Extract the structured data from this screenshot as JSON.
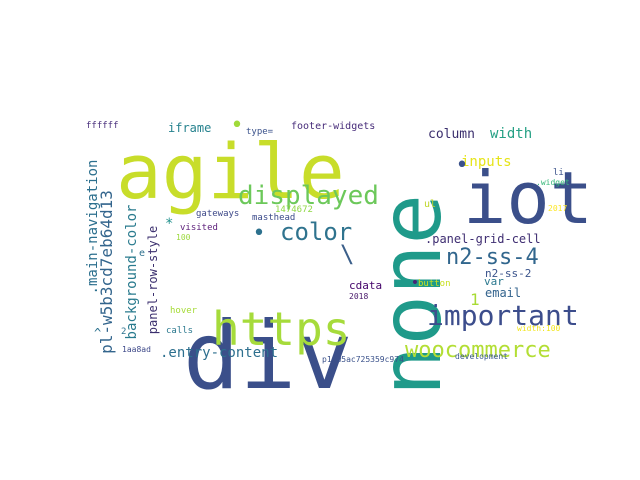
{
  "words": [
    {
      "text": "div",
      "color": "#3b4f8a"
    },
    {
      "text": "agile",
      "color": "#c8dd2a"
    },
    {
      "text": "none",
      "color": "#1f9a8a"
    },
    {
      "text": "iot",
      "color": "#3b4f8a"
    },
    {
      "text": "https",
      "color": "#a6db3b"
    },
    {
      "text": "woocommerce",
      "color": "#b3de35"
    },
    {
      "text": "important",
      "color": "#3c4d8c"
    },
    {
      "text": "displayed",
      "color": "#6cc85a"
    },
    {
      "text": "n2-ss-4",
      "color": "#31668d"
    },
    {
      "text": "color",
      "color": "#2f738e"
    },
    {
      "text": "pl-w5b3cd7eb64d13",
      "color": "#33658d"
    },
    {
      "text": ".main-navigation",
      "color": "#2d708e"
    },
    {
      "text": "background-color",
      "color": "#2a7b8e"
    },
    {
      "text": ".entry-content",
      "color": "#2d6f8e"
    },
    {
      "text": "panel-row-style",
      "color": "#3b2f6e"
    },
    {
      "text": ".panel-grid-cell",
      "color": "#3f2e72"
    },
    {
      "text": "inputs",
      "color": "#e6e419"
    },
    {
      "text": "width",
      "color": "#25a084"
    },
    {
      "text": "column",
      "color": "#3b2f6e"
    },
    {
      "text": "n2-ss-2",
      "color": "#3a538b"
    },
    {
      "text": "iframe",
      "color": "#26828e"
    },
    {
      "text": "email",
      "color": "#33638d"
    },
    {
      "text": "var",
      "color": "#2a788e"
    },
    {
      "text": "cdata",
      "color": "#44046a"
    },
    {
      "text": "footer-widgets",
      "color": "#472c7a"
    },
    {
      "text": "type=",
      "color": "#3b528b"
    },
    {
      "text": "ffffff",
      "color": "#472d7b"
    },
    {
      "text": "gateways",
      "color": "#3e4989"
    },
    {
      "text": "masthead",
      "color": "#3b4a8a"
    },
    {
      "text": "visited",
      "color": "#5c1f7a"
    },
    {
      "text": "1474672",
      "color": "#8fd744"
    },
    {
      "text": "2018",
      "color": "#48186a"
    },
    {
      "text": "button",
      "color": "#c8e020"
    },
    {
      "text": "hover",
      "color": "#a5db36"
    },
    {
      "text": "calls",
      "color": "#2a788e"
    },
    {
      "text": "1aa8ad",
      "color": "#3e4989"
    },
    {
      "text": "p1-w5ac725359c974",
      "color": "#3b528b"
    },
    {
      "text": "development",
      "color": "#38588c"
    },
    {
      "text": "width:100",
      "color": "#f1e51d"
    },
    {
      "text": ".widget",
      "color": "#35b779"
    },
    {
      "text": "2017",
      "color": "#fde725"
    },
    {
      "text": "ul",
      "color": "#bfd62a"
    },
    {
      "text": "li",
      "color": "#3b528b"
    },
    {
      "text": "100",
      "color": "#9bd93c"
    },
    {
      "text": "1",
      "color": "#a8db34"
    },
    {
      "text": "\\",
      "color": "#3b5f8a"
    },
    {
      "text": "^",
      "color": "#2c718e"
    },
    {
      "text": "*",
      "color": "#21918c"
    },
    {
      "text": "e",
      "color": "#2d708e"
    },
    {
      "text": "2",
      "color": "#2c728e"
    },
    {
      "text": "•",
      "color": "#a0da39"
    },
    {
      "text": "•",
      "color": "#2d718e"
    },
    {
      "text": "•",
      "color": "#3b528b"
    },
    {
      "text": "•",
      "color": "#482576"
    }
  ]
}
